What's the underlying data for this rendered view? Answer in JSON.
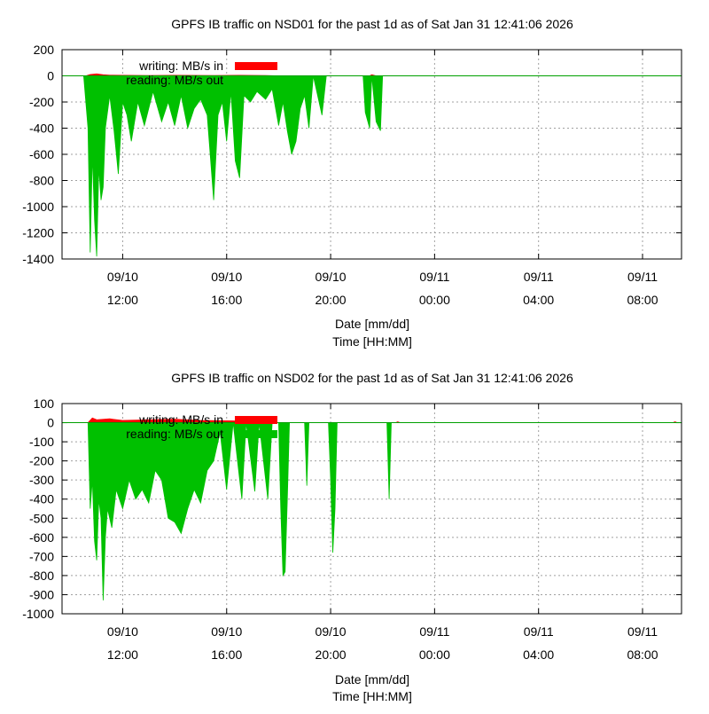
{
  "colors": {
    "writing": "#ff0000",
    "reading": "#00c000",
    "zero_line": "#00a000"
  },
  "chart_data": [
    {
      "type": "area",
      "title": "GPFS IB traffic on NSD01 for the past 1d as of Sat Jan 31 12:41:06 2026",
      "xlabel_line1": "Date [mm/dd]",
      "xlabel_line2": "Time [HH:MM]",
      "ylim": [
        -1400,
        200
      ],
      "yticks": [
        200,
        0,
        -200,
        -400,
        -600,
        -800,
        -1000,
        -1200,
        -1400
      ],
      "xlim": [
        "09/10 09:40",
        "09/11 09:30"
      ],
      "xticks": [
        {
          "x": "09/10 12:00",
          "date": "09/10",
          "time": "12:00"
        },
        {
          "x": "09/10 16:00",
          "date": "09/10",
          "time": "16:00"
        },
        {
          "x": "09/10 20:00",
          "date": "09/10",
          "time": "20:00"
        },
        {
          "x": "09/11 00:00",
          "date": "09/11",
          "time": "00:00"
        },
        {
          "x": "09/11 04:00",
          "date": "09/11",
          "time": "04:00"
        },
        {
          "x": "09/11 08:00",
          "date": "09/11",
          "time": "08:00"
        }
      ],
      "grid": true,
      "legend_position": "top-left",
      "legend_entries": [
        {
          "text": "writing: MB/s  in",
          "color": "#ff0000"
        },
        {
          "text": "reading: MB/s  out",
          "color": "#00c000"
        }
      ],
      "series": [
        {
          "name": "writing: MB/s  in",
          "color": "#ff0000",
          "points": [
            [
              "09/10 10:35",
              0
            ],
            [
              "09/10 10:45",
              10
            ],
            [
              "09/10 11:00",
              15
            ],
            [
              "09/10 11:15",
              8
            ],
            [
              "09/10 11:30",
              5
            ],
            [
              "09/10 12:00",
              4
            ],
            [
              "09/10 13:00",
              3
            ],
            [
              "09/10 14:00",
              4
            ],
            [
              "09/10 15:30",
              3
            ],
            [
              "09/10 16:30",
              4
            ],
            [
              "09/10 17:30",
              2
            ],
            [
              "09/10 18:00",
              0
            ],
            [
              "09/10 21:30",
              0
            ],
            [
              "09/10 21:35",
              8
            ],
            [
              "09/10 21:45",
              0
            ],
            [
              "09/11 09:20",
              0
            ]
          ]
        },
        {
          "name": "reading: MB/s  out",
          "color": "#00c000",
          "points": [
            [
              "09/10 10:30",
              0
            ],
            [
              "09/10 10:40",
              -400
            ],
            [
              "09/10 10:45",
              -1350
            ],
            [
              "09/10 10:50",
              -600
            ],
            [
              "09/10 10:55",
              -1100
            ],
            [
              "09/10 11:00",
              -1380
            ],
            [
              "09/10 11:05",
              -700
            ],
            [
              "09/10 11:10",
              -950
            ],
            [
              "09/10 11:15",
              -850
            ],
            [
              "09/10 11:20",
              -400
            ],
            [
              "09/10 11:30",
              -150
            ],
            [
              "09/10 11:40",
              -420
            ],
            [
              "09/10 11:50",
              -750
            ],
            [
              "09/10 12:00",
              -200
            ],
            [
              "09/10 12:10",
              -300
            ],
            [
              "09/10 12:20",
              -500
            ],
            [
              "09/10 12:35",
              -200
            ],
            [
              "09/10 12:50",
              -380
            ],
            [
              "09/10 13:10",
              -120
            ],
            [
              "09/10 13:30",
              -350
            ],
            [
              "09/10 13:45",
              -200
            ],
            [
              "09/10 14:00",
              -380
            ],
            [
              "09/10 14:15",
              -150
            ],
            [
              "09/10 14:30",
              -400
            ],
            [
              "09/10 14:45",
              -250
            ],
            [
              "09/10 15:00",
              -180
            ],
            [
              "09/10 15:15",
              -300
            ],
            [
              "09/10 15:30",
              -950
            ],
            [
              "09/10 15:40",
              -300
            ],
            [
              "09/10 15:50",
              -200
            ],
            [
              "09/10 16:00",
              -500
            ],
            [
              "09/10 16:10",
              -120
            ],
            [
              "09/10 16:20",
              -650
            ],
            [
              "09/10 16:30",
              -780
            ],
            [
              "09/10 16:40",
              -150
            ],
            [
              "09/10 16:55",
              -200
            ],
            [
              "09/10 17:10",
              -120
            ],
            [
              "09/10 17:30",
              -180
            ],
            [
              "09/10 17:45",
              -100
            ],
            [
              "09/10 18:00",
              -380
            ],
            [
              "09/10 18:10",
              -200
            ],
            [
              "09/10 18:20",
              -420
            ],
            [
              "09/10 18:30",
              -600
            ],
            [
              "09/10 18:40",
              -500
            ],
            [
              "09/10 18:50",
              -250
            ],
            [
              "09/10 19:00",
              -150
            ],
            [
              "09/10 19:10",
              -400
            ],
            [
              "09/10 19:20",
              0
            ],
            [
              "09/10 19:40",
              -300
            ],
            [
              "09/10 19:50",
              0
            ],
            [
              "09/10 21:15",
              0
            ],
            [
              "09/10 21:20",
              -280
            ],
            [
              "09/10 21:30",
              -400
            ],
            [
              "09/10 21:35",
              0
            ],
            [
              "09/10 21:45",
              -350
            ],
            [
              "09/10 21:55",
              -420
            ],
            [
              "09/10 22:00",
              0
            ],
            [
              "09/11 09:20",
              0
            ]
          ]
        }
      ]
    },
    {
      "type": "area",
      "title": "GPFS IB traffic on NSD02 for the past 1d as of Sat Jan 31 12:41:06 2026",
      "xlabel_line1": "Date [mm/dd]",
      "xlabel_line2": "Time [HH:MM]",
      "ylim": [
        -1000,
        100
      ],
      "yticks": [
        100,
        0,
        -100,
        -200,
        -300,
        -400,
        -500,
        -600,
        -700,
        -800,
        -900,
        -1000
      ],
      "xlim": [
        "09/10 09:40",
        "09/11 09:30"
      ],
      "xticks": [
        {
          "x": "09/10 12:00",
          "date": "09/10",
          "time": "12:00"
        },
        {
          "x": "09/10 16:00",
          "date": "09/10",
          "time": "16:00"
        },
        {
          "x": "09/10 20:00",
          "date": "09/10",
          "time": "20:00"
        },
        {
          "x": "09/11 00:00",
          "date": "09/11",
          "time": "00:00"
        },
        {
          "x": "09/11 04:00",
          "date": "09/11",
          "time": "04:00"
        },
        {
          "x": "09/11 08:00",
          "date": "09/11",
          "time": "08:00"
        }
      ],
      "grid": true,
      "legend_position": "top-left",
      "legend_entries": [
        {
          "text": "writing: MB/s  in",
          "color": "#ff0000"
        },
        {
          "text": "reading: MB/s  out",
          "color": "#00c000"
        }
      ],
      "series": [
        {
          "name": "writing: MB/s  in",
          "color": "#ff0000",
          "points": [
            [
              "09/10 10:40",
              0
            ],
            [
              "09/10 10:50",
              25
            ],
            [
              "09/10 11:00",
              15
            ],
            [
              "09/10 11:30",
              20
            ],
            [
              "09/10 12:00",
              12
            ],
            [
              "09/10 13:00",
              15
            ],
            [
              "09/10 14:00",
              18
            ],
            [
              "09/10 15:00",
              12
            ],
            [
              "09/10 16:00",
              10
            ],
            [
              "09/10 17:00",
              8
            ],
            [
              "09/10 17:40",
              0
            ],
            [
              "09/10 22:30",
              0
            ],
            [
              "09/10 22:35",
              5
            ],
            [
              "09/10 22:40",
              0
            ],
            [
              "09/11 09:10",
              0
            ],
            [
              "09/11 09:15",
              5
            ],
            [
              "09/11 09:20",
              0
            ]
          ]
        },
        {
          "name": "reading: MB/s  out",
          "color": "#00c000",
          "points": [
            [
              "09/10 10:40",
              0
            ],
            [
              "09/10 10:45",
              -450
            ],
            [
              "09/10 10:50",
              -300
            ],
            [
              "09/10 10:55",
              -620
            ],
            [
              "09/10 11:00",
              -720
            ],
            [
              "09/10 11:05",
              -400
            ],
            [
              "09/10 11:10",
              -500
            ],
            [
              "09/10 11:15",
              -930
            ],
            [
              "09/10 11:20",
              -600
            ],
            [
              "09/10 11:25",
              -450
            ],
            [
              "09/10 11:35",
              -550
            ],
            [
              "09/10 11:45",
              -350
            ],
            [
              "09/10 12:00",
              -450
            ],
            [
              "09/10 12:15",
              -300
            ],
            [
              "09/10 12:30",
              -400
            ],
            [
              "09/10 12:45",
              -350
            ],
            [
              "09/10 13:00",
              -420
            ],
            [
              "09/10 13:15",
              -250
            ],
            [
              "09/10 13:30",
              -300
            ],
            [
              "09/10 13:45",
              -500
            ],
            [
              "09/10 14:00",
              -520
            ],
            [
              "09/10 14:15",
              -580
            ],
            [
              "09/10 14:30",
              -450
            ],
            [
              "09/10 14:45",
              -350
            ],
            [
              "09/10 15:00",
              -420
            ],
            [
              "09/10 15:15",
              -250
            ],
            [
              "09/10 15:30",
              -200
            ],
            [
              "09/10 15:45",
              -50
            ],
            [
              "09/10 16:00",
              -350
            ],
            [
              "09/10 16:15",
              0
            ],
            [
              "09/10 16:35",
              -400
            ],
            [
              "09/10 16:45",
              0
            ],
            [
              "09/10 17:05",
              -360
            ],
            [
              "09/10 17:15",
              0
            ],
            [
              "09/10 17:35",
              -400
            ],
            [
              "09/10 17:45",
              0
            ],
            [
              "09/10 18:00",
              0
            ],
            [
              "09/10 18:05",
              -450
            ],
            [
              "09/10 18:10",
              -800
            ],
            [
              "09/10 18:15",
              -780
            ],
            [
              "09/10 18:20",
              -400
            ],
            [
              "09/10 18:25",
              0
            ],
            [
              "09/10 19:00",
              0
            ],
            [
              "09/10 19:05",
              -330
            ],
            [
              "09/10 19:10",
              0
            ],
            [
              "09/10 19:55",
              0
            ],
            [
              "09/10 20:00",
              -300
            ],
            [
              "09/10 20:05",
              -680
            ],
            [
              "09/10 20:10",
              -450
            ],
            [
              "09/10 20:15",
              0
            ],
            [
              "09/10 22:10",
              0
            ],
            [
              "09/10 22:15",
              -400
            ],
            [
              "09/10 22:20",
              0
            ],
            [
              "09/11 09:20",
              0
            ]
          ]
        }
      ]
    }
  ]
}
